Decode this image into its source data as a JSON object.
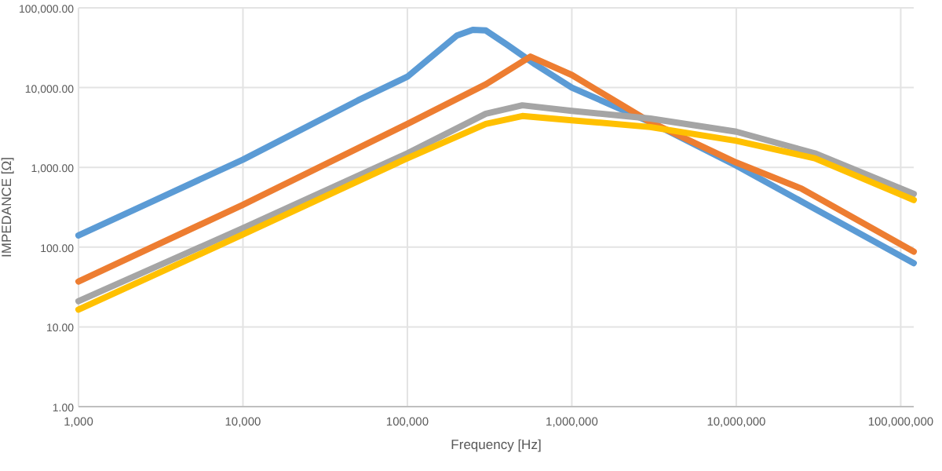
{
  "chart_data": {
    "type": "line",
    "xlabel": "Frequency [Hz]",
    "ylabel": "IMPEDANCE [Ω]",
    "log": "xy",
    "grid": true,
    "marker": "none",
    "line_style": "solid",
    "xlim": [
      1000,
      120000000
    ],
    "ylim": [
      1,
      100000
    ],
    "xticks": [
      {
        "value": 1000,
        "label": "1,000"
      },
      {
        "value": 10000,
        "label": "10,000"
      },
      {
        "value": 100000,
        "label": "100,000"
      },
      {
        "value": 1000000,
        "label": "1,000,000"
      },
      {
        "value": 10000000,
        "label": "10,000,000"
      },
      {
        "value": 100000000,
        "label": "100,000,000"
      }
    ],
    "yticks": [
      {
        "value": 1,
        "label": "1.00"
      },
      {
        "value": 10,
        "label": "10.00"
      },
      {
        "value": 100,
        "label": "100.00"
      },
      {
        "value": 1000,
        "label": "1,000.00"
      },
      {
        "value": 10000,
        "label": "10,000.00"
      },
      {
        "value": 100000,
        "label": "100,000.00"
      }
    ],
    "series": [
      {
        "color": "#5b9bd5",
        "x": [
          1000,
          10000,
          50000,
          100000,
          200000,
          250000,
          300000,
          400000,
          600000,
          1000000,
          3000000,
          10000000,
          120000000
        ],
        "values": [
          140,
          1250,
          6900,
          13700,
          45000,
          53000,
          52000,
          35000,
          19500,
          10000,
          3700,
          1050,
          63
        ]
      },
      {
        "color": "#ed7d31",
        "x": [
          1000,
          10000,
          100000,
          300000,
          560000,
          1000000,
          3000000,
          10000000,
          25000000,
          120000000
        ],
        "values": [
          37,
          340,
          3500,
          11000,
          24500,
          14400,
          3700,
          1150,
          540,
          88
        ]
      },
      {
        "color": "#a5a5a5",
        "x": [
          1000,
          10000,
          100000,
          300000,
          500000,
          1000000,
          3000000,
          10000000,
          30000000,
          120000000
        ],
        "values": [
          21,
          173,
          1500,
          4700,
          6000,
          5100,
          4100,
          2800,
          1500,
          465
        ]
      },
      {
        "color": "#ffc000",
        "x": [
          1000,
          10000,
          100000,
          300000,
          500000,
          1000000,
          3000000,
          10000000,
          30000000,
          120000000
        ],
        "values": [
          16.5,
          144,
          1300,
          3500,
          4400,
          3900,
          3200,
          2150,
          1300,
          390
        ]
      }
    ]
  }
}
